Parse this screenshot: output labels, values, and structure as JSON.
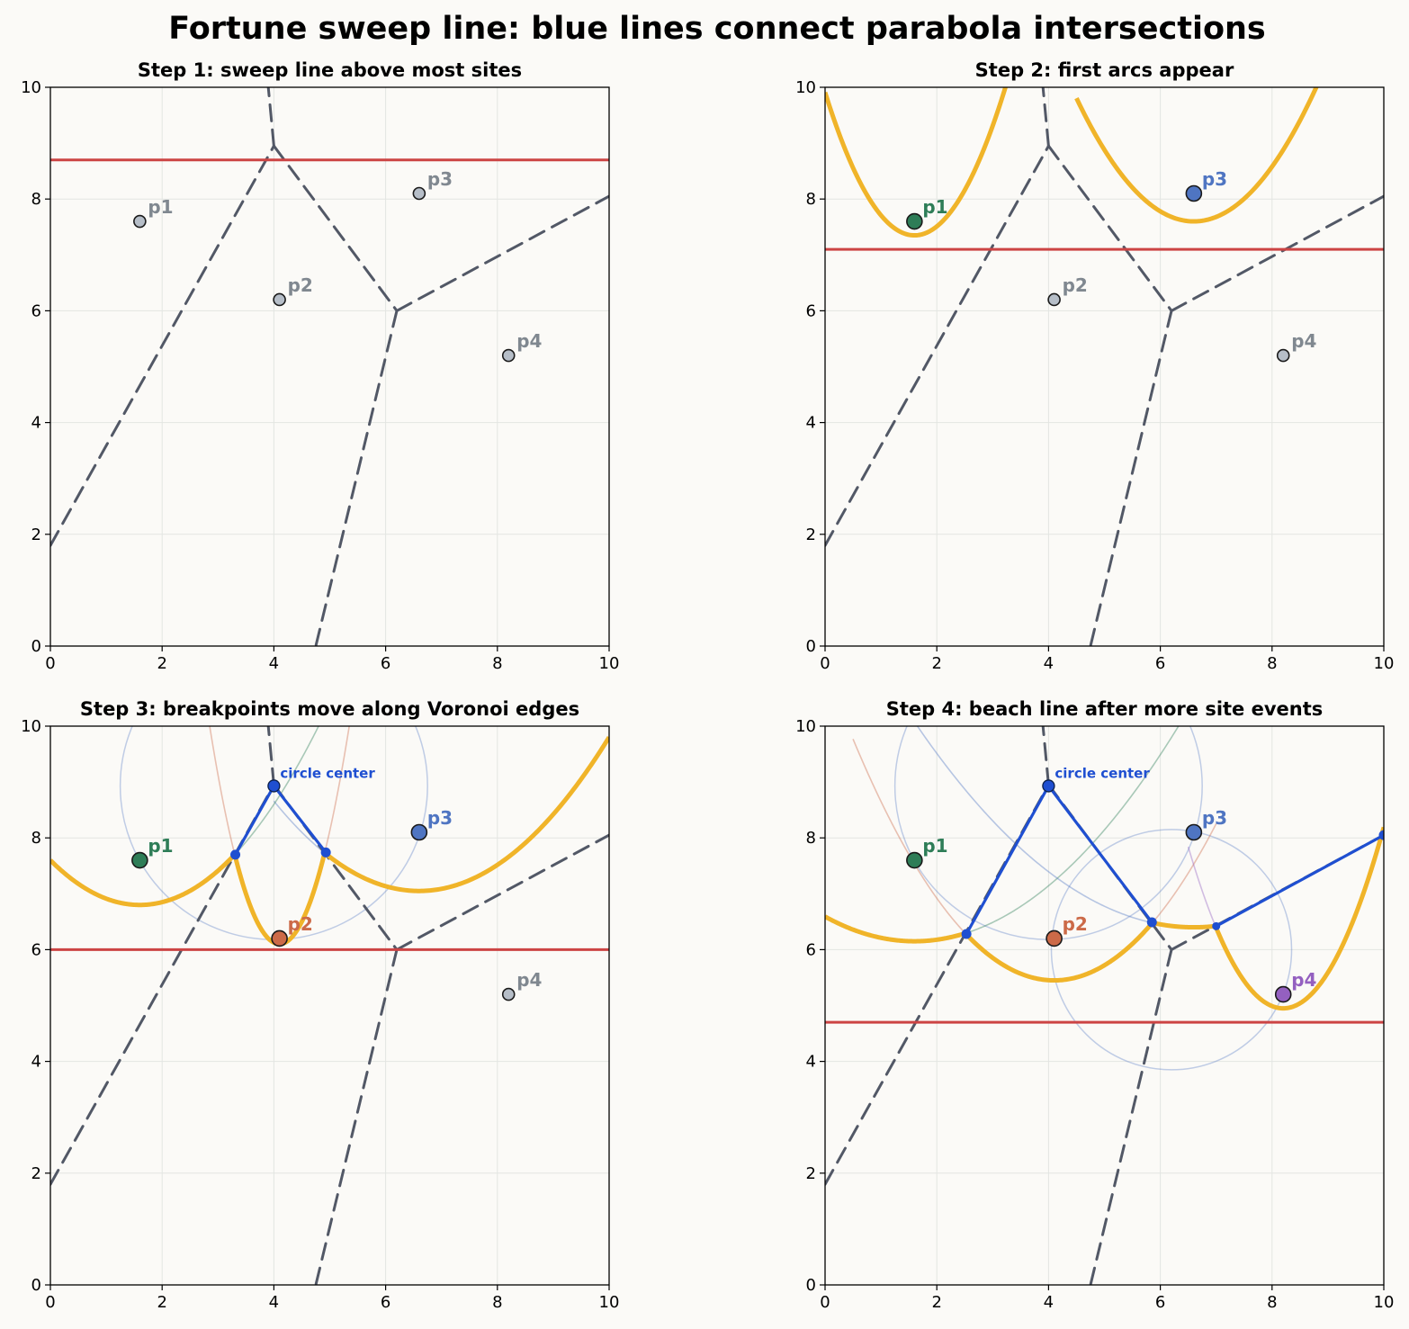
{
  "figure": {
    "title": "Fortune sweep line: blue lines connect parabola intersections"
  },
  "colors": {
    "background": "#fbfaf7",
    "sweep": "#cc4444",
    "beach": "#f0b429",
    "voronoi": "#525866",
    "blue": "#1f4fd1",
    "gray_site": "#b6bec8",
    "gray_label": "#808890",
    "p1": "#2e7d57",
    "p2": "#cc6a48",
    "p3": "#4f75c2",
    "p4": "#9460c0"
  },
  "chart_data": [
    {
      "type": "line",
      "title": "Step 1: sweep line above most sites",
      "xlim": [
        0,
        10
      ],
      "ylim": [
        0,
        10
      ],
      "xticks": [
        "0",
        "2",
        "4",
        "6",
        "8",
        "10"
      ],
      "yticks": [
        "0",
        "2",
        "4",
        "6",
        "8",
        "10"
      ],
      "grid": true,
      "sweep_y": 8.7,
      "sites": [
        {
          "name": "p1",
          "x": 1.6,
          "y": 7.6,
          "state": "inactive"
        },
        {
          "name": "p2",
          "x": 4.1,
          "y": 6.2,
          "state": "inactive"
        },
        {
          "name": "p3",
          "x": 6.6,
          "y": 8.1,
          "state": "inactive"
        },
        {
          "name": "p4",
          "x": 8.2,
          "y": 5.2,
          "state": "inactive"
        }
      ],
      "voronoi_edges": [
        [
          [
            0,
            1.8
          ],
          [
            4.0,
            8.95
          ]
        ],
        [
          [
            4.0,
            8.95
          ],
          [
            3.9,
            10
          ]
        ],
        [
          [
            4.0,
            8.95
          ],
          [
            6.2,
            6.0
          ]
        ],
        [
          [
            6.2,
            6.0
          ],
          [
            10,
            8.05
          ]
        ],
        [
          [
            6.2,
            6.0
          ],
          [
            4.75,
            0
          ]
        ]
      ],
      "beach_arcs": [],
      "faint_parabolas": [],
      "circles": [],
      "blue_points": [],
      "blue_lines": [],
      "annotation": null
    },
    {
      "type": "line",
      "title": "Step 2: first arcs appear",
      "xlim": [
        0,
        10
      ],
      "ylim": [
        0,
        10
      ],
      "xticks": [
        "0",
        "2",
        "4",
        "6",
        "8",
        "10"
      ],
      "yticks": [
        "0",
        "2",
        "4",
        "6",
        "8",
        "10"
      ],
      "grid": true,
      "sweep_y": 7.1,
      "sites": [
        {
          "name": "p1",
          "x": 1.6,
          "y": 7.6,
          "state": "active"
        },
        {
          "name": "p2",
          "x": 4.1,
          "y": 6.2,
          "state": "inactive"
        },
        {
          "name": "p3",
          "x": 6.6,
          "y": 8.1,
          "state": "active"
        },
        {
          "name": "p4",
          "x": 8.2,
          "y": 5.2,
          "state": "inactive"
        }
      ],
      "voronoi_edges": [
        [
          [
            0,
            1.8
          ],
          [
            4.0,
            8.95
          ]
        ],
        [
          [
            4.0,
            8.95
          ],
          [
            3.9,
            10
          ]
        ],
        [
          [
            4.0,
            8.95
          ],
          [
            6.2,
            6.0
          ]
        ],
        [
          [
            6.2,
            6.0
          ],
          [
            10,
            8.05
          ]
        ],
        [
          [
            6.2,
            6.0
          ],
          [
            4.75,
            0
          ]
        ]
      ],
      "beach_arcs": [
        {
          "site": "p1",
          "x0": 0,
          "x1": 3.5
        },
        {
          "site": "p3",
          "x0": 4.5,
          "x1": 9.0
        }
      ],
      "faint_parabolas": [],
      "circles": [],
      "blue_points": [],
      "blue_lines": [],
      "annotation": null
    },
    {
      "type": "line",
      "title": "Step 3: breakpoints move along Voronoi edges",
      "xlim": [
        0,
        10
      ],
      "ylim": [
        0,
        10
      ],
      "xticks": [
        "0",
        "2",
        "4",
        "6",
        "8",
        "10"
      ],
      "yticks": [
        "0",
        "2",
        "4",
        "6",
        "8",
        "10"
      ],
      "grid": true,
      "sweep_y": 6.0,
      "sites": [
        {
          "name": "p1",
          "x": 1.6,
          "y": 7.6,
          "state": "active"
        },
        {
          "name": "p2",
          "x": 4.1,
          "y": 6.2,
          "state": "active"
        },
        {
          "name": "p3",
          "x": 6.6,
          "y": 8.1,
          "state": "active"
        },
        {
          "name": "p4",
          "x": 8.2,
          "y": 5.2,
          "state": "inactive"
        }
      ],
      "voronoi_edges": [
        [
          [
            0,
            1.8
          ],
          [
            4.0,
            8.95
          ]
        ],
        [
          [
            4.0,
            8.95
          ],
          [
            3.9,
            10
          ]
        ],
        [
          [
            4.0,
            8.95
          ],
          [
            6.2,
            6.0
          ]
        ],
        [
          [
            6.2,
            6.0
          ],
          [
            10,
            8.05
          ]
        ],
        [
          [
            6.2,
            6.0
          ],
          [
            4.75,
            0
          ]
        ]
      ],
      "beach_arcs": [
        {
          "site": "p1",
          "x0": 0,
          "x1": 3.31
        },
        {
          "site": "p2",
          "x0": 3.31,
          "x1": 4.93
        },
        {
          "site": "p3",
          "x0": 4.93,
          "x1": 10
        }
      ],
      "faint_parabolas": [
        {
          "site": "p2",
          "x0": 2.5,
          "x1": 5.8
        },
        {
          "site": "p3",
          "x0": 4.0,
          "x1": 5.5
        },
        {
          "site": "p1",
          "x0": 3.31,
          "x1": 5.0
        }
      ],
      "circles": [
        {
          "cx": 4.0,
          "cy": 8.93,
          "r": 2.75
        }
      ],
      "blue_points": [
        {
          "x": 4.0,
          "y": 8.93
        },
        {
          "x": 3.31,
          "y": 7.7
        },
        {
          "x": 4.93,
          "y": 7.74
        }
      ],
      "blue_lines": [
        [
          [
            3.31,
            7.7
          ],
          [
            4.0,
            8.93
          ],
          [
            4.93,
            7.74
          ]
        ]
      ],
      "annotation": {
        "text": "circle center",
        "x": 4.0,
        "y": 8.93
      }
    },
    {
      "type": "line",
      "title": "Step 4: beach line after more site events",
      "xlim": [
        0,
        10
      ],
      "ylim": [
        0,
        10
      ],
      "xticks": [
        "0",
        "2",
        "4",
        "6",
        "8",
        "10"
      ],
      "yticks": [
        "0",
        "2",
        "4",
        "6",
        "8",
        "10"
      ],
      "grid": true,
      "sweep_y": 4.7,
      "sites": [
        {
          "name": "p1",
          "x": 1.6,
          "y": 7.6,
          "state": "active"
        },
        {
          "name": "p2",
          "x": 4.1,
          "y": 6.2,
          "state": "active"
        },
        {
          "name": "p3",
          "x": 6.6,
          "y": 8.1,
          "state": "active"
        },
        {
          "name": "p4",
          "x": 8.2,
          "y": 5.2,
          "state": "active"
        }
      ],
      "voronoi_edges": [
        [
          [
            0,
            1.8
          ],
          [
            4.0,
            8.95
          ]
        ],
        [
          [
            4.0,
            8.95
          ],
          [
            3.9,
            10
          ]
        ],
        [
          [
            4.0,
            8.95
          ],
          [
            6.2,
            6.0
          ]
        ],
        [
          [
            6.2,
            6.0
          ],
          [
            10,
            8.05
          ]
        ],
        [
          [
            6.2,
            6.0
          ],
          [
            4.75,
            0
          ]
        ]
      ],
      "beach_arcs": [
        {
          "site": "p1",
          "x0": 0,
          "x1": 2.53
        },
        {
          "site": "p2",
          "x0": 2.53,
          "x1": 5.85
        },
        {
          "site": "p3",
          "x0": 5.85,
          "x1": 7.0
        },
        {
          "site": "p4",
          "x0": 7.0,
          "x1": 10
        }
      ],
      "faint_parabolas": [
        {
          "site": "p2",
          "x0": 0.5,
          "x1": 2.53
        },
        {
          "site": "p2",
          "x0": 5.85,
          "x1": 7.0
        },
        {
          "site": "p1",
          "x0": 2.53,
          "x1": 6.8
        },
        {
          "site": "p3",
          "x0": 1.6,
          "x1": 5.85
        },
        {
          "site": "p4",
          "x0": 6.5,
          "x1": 7.0
        }
      ],
      "circles": [
        {
          "cx": 4.0,
          "cy": 8.93,
          "r": 2.75
        },
        {
          "cx": 6.2,
          "cy": 6.0,
          "r": 2.15
        }
      ],
      "blue_points": [
        {
          "x": 4.0,
          "y": 8.93
        },
        {
          "x": 2.53,
          "y": 6.28
        },
        {
          "x": 5.85,
          "y": 6.49
        },
        {
          "x": 7.0,
          "y": 6.42
        },
        {
          "x": 10.0,
          "y": 8.05
        }
      ],
      "blue_lines": [
        [
          [
            2.53,
            6.28
          ],
          [
            4.0,
            8.93
          ],
          [
            5.85,
            6.49
          ]
        ],
        [
          [
            7.0,
            6.42
          ],
          [
            10.0,
            8.05
          ]
        ]
      ],
      "annotation": {
        "text": "circle center",
        "x": 4.0,
        "y": 8.93
      }
    }
  ]
}
